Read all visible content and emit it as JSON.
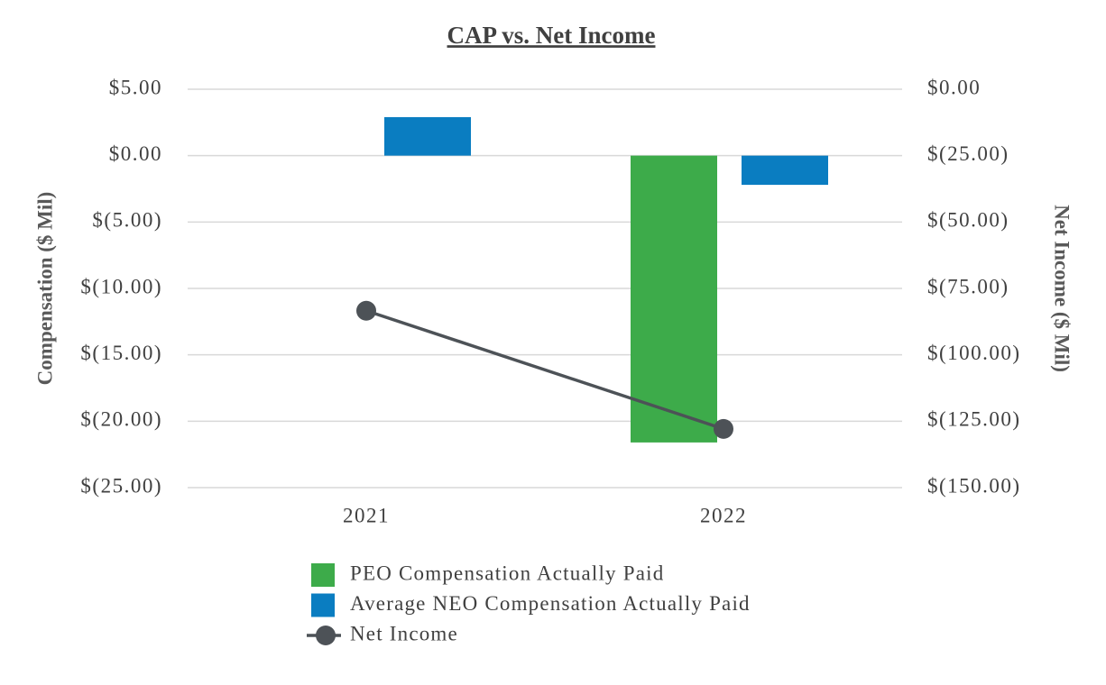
{
  "chart_data": {
    "type": "bar",
    "title": "CAP vs. Net Income",
    "categories": [
      "2021",
      "2022"
    ],
    "series": [
      {
        "name": "PEO Compensation Actually Paid",
        "color": "#3dab4a",
        "values": [
          null,
          -21.6
        ]
      },
      {
        "name": "Average NEO Compensation Actually Paid",
        "color": "#0a7dc1",
        "values": [
          2.9,
          -2.2
        ]
      },
      {
        "name": "Net Income",
        "color": "#4d5257",
        "type": "line",
        "axis": "y2",
        "values": [
          -83.4,
          -127.9
        ]
      }
    ],
    "ylabel": "Compensation ($ Mil)",
    "y2label": "Net Income ($ Mil)",
    "ylim": [
      -25,
      5
    ],
    "yticks": [
      {
        "value": -25,
        "label": "$(25.00)"
      },
      {
        "value": -20,
        "label": "$(20.00)"
      },
      {
        "value": -15,
        "label": "$(15.00)"
      },
      {
        "value": -10,
        "label": "$(10.00)"
      },
      {
        "value": -5,
        "label": "$(5.00)"
      },
      {
        "value": 0,
        "label": "$0.00"
      },
      {
        "value": 5,
        "label": "$5.00"
      }
    ],
    "y2lim": [
      -150,
      0
    ],
    "y2ticks": [
      {
        "value": -150,
        "label": "$(150.00)"
      },
      {
        "value": -125,
        "label": "$(125.00)"
      },
      {
        "value": -100,
        "label": "$(100.00)"
      },
      {
        "value": -75,
        "label": "$(75.00)"
      },
      {
        "value": -50,
        "label": "$(50.00)"
      },
      {
        "value": -25,
        "label": "$(25.00)"
      },
      {
        "value": 0,
        "label": "$0.00"
      }
    ],
    "grid": true,
    "legend": "bottom"
  }
}
